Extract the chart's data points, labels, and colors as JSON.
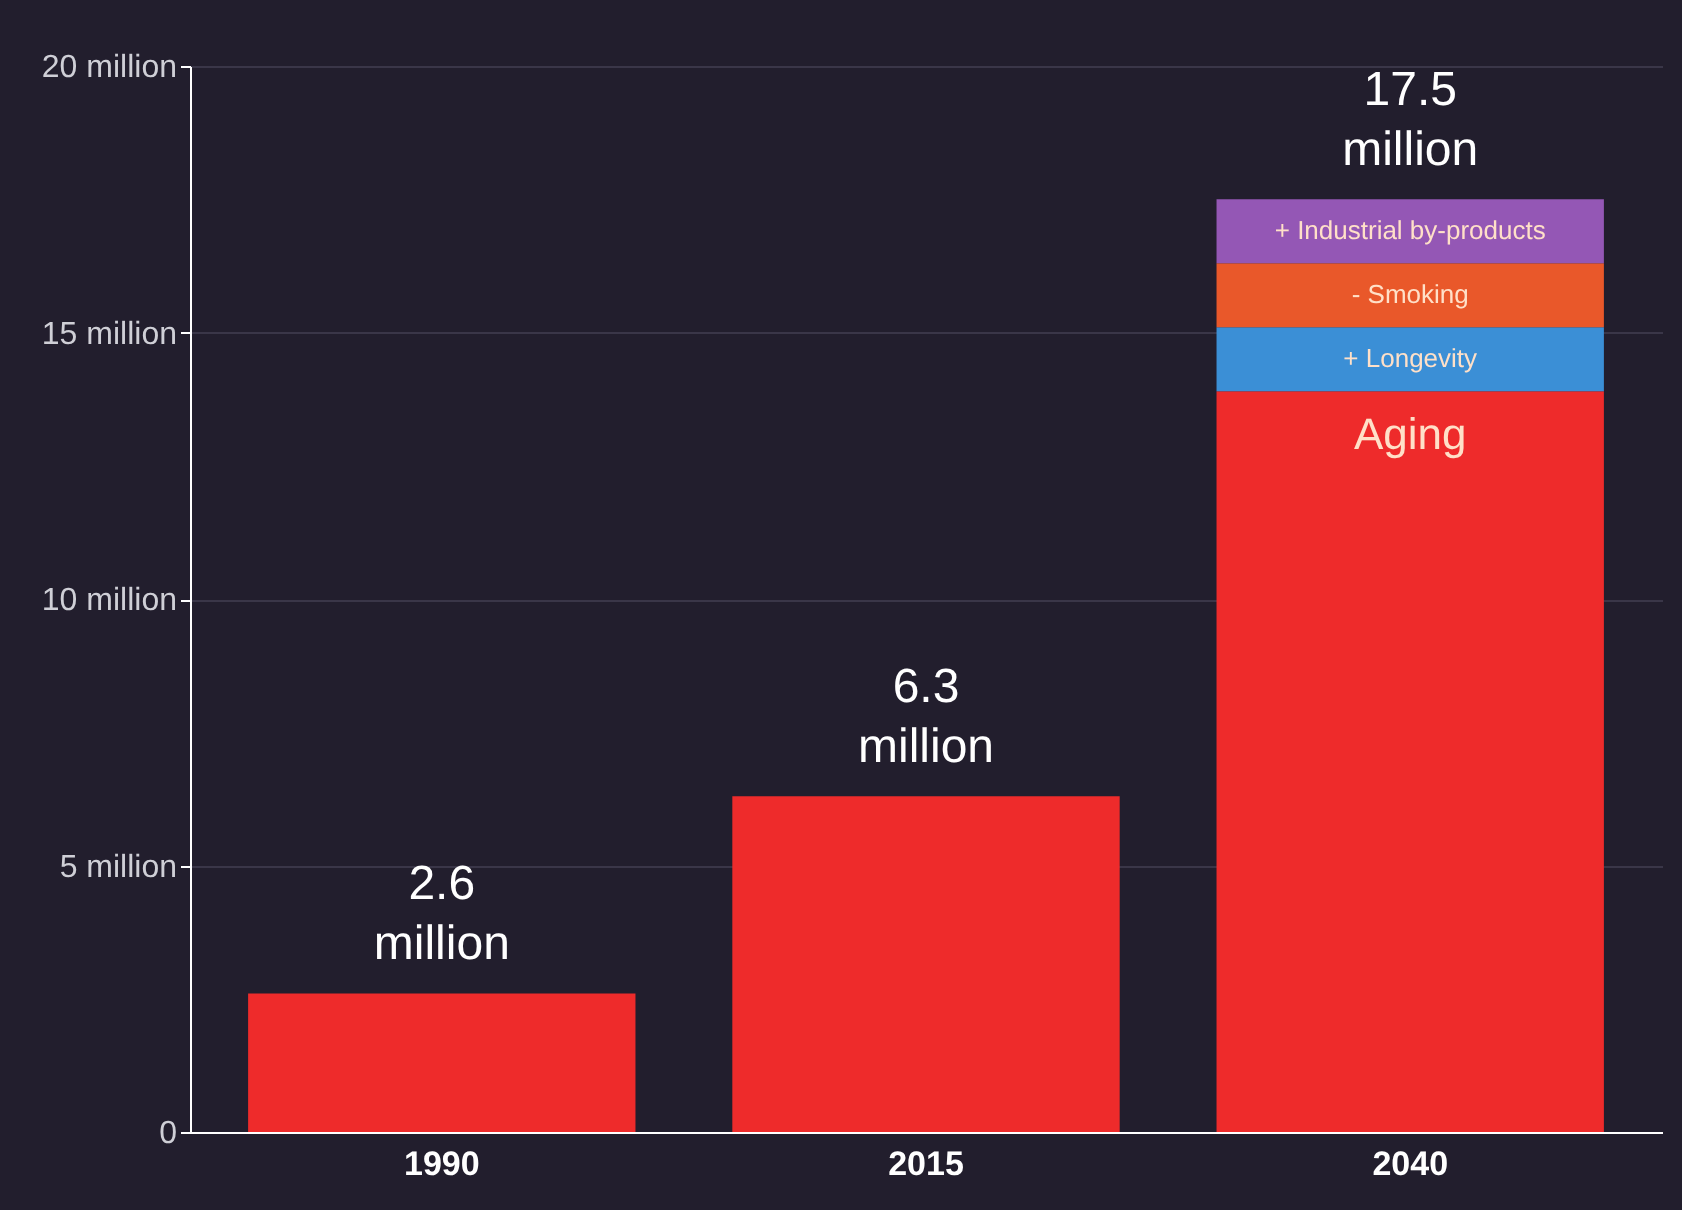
{
  "chart_data": {
    "type": "bar",
    "stacked": true,
    "categories": [
      "1990",
      "2015",
      "2040"
    ],
    "series": [
      {
        "name": "Aging",
        "color": "#ee2b2b",
        "values": [
          2.6,
          6.3,
          13.9
        ]
      },
      {
        "name": "+ Longevity",
        "color": "#3b8fd6",
        "values": [
          null,
          null,
          1.2
        ]
      },
      {
        "name": "- Smoking",
        "color": "#e9582a",
        "values": [
          null,
          null,
          1.2
        ]
      },
      {
        "name": "+ Industrial by-products",
        "color": "#9457b5",
        "values": [
          null,
          null,
          1.2
        ]
      }
    ],
    "totals": [
      "2.6 million",
      "6.3 million",
      "17.5 million"
    ],
    "ylim": [
      0,
      20
    ],
    "yticks": [
      {
        "value": 0,
        "label": "0"
      },
      {
        "value": 5,
        "label": "5 million"
      },
      {
        "value": 10,
        "label": "10 million"
      },
      {
        "value": 15,
        "label": "15 million"
      },
      {
        "value": 20,
        "label": "20 million"
      }
    ],
    "grid": "y"
  }
}
